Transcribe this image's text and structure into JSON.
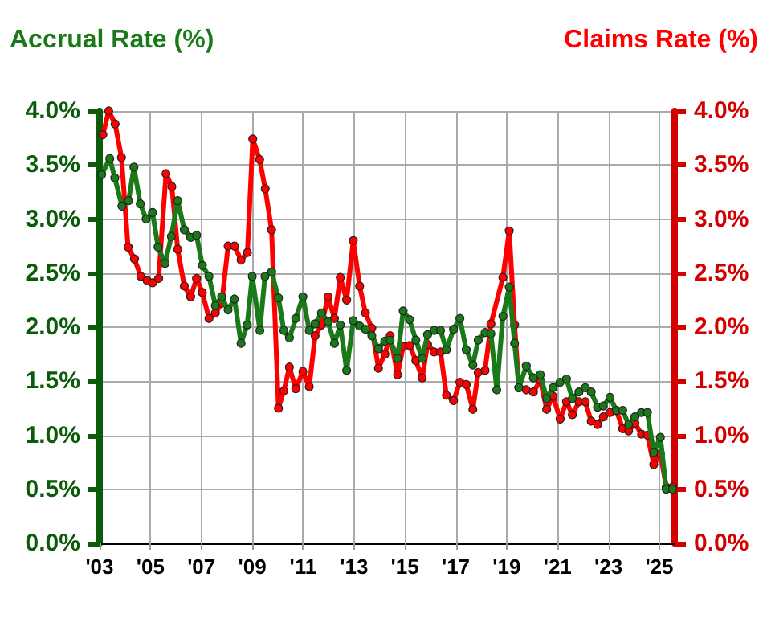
{
  "chart_data": {
    "type": "line",
    "ylabel": "Accrual Rate (%)",
    "y2label": "Claims Rate (%)",
    "xlim": [
      2003,
      2025.6
    ],
    "xticks": [
      {
        "value": 2003,
        "label": "'03"
      },
      {
        "value": 2005,
        "label": "'05"
      },
      {
        "value": 2007,
        "label": "'07"
      },
      {
        "value": 2009,
        "label": "'09"
      },
      {
        "value": 2011,
        "label": "'11"
      },
      {
        "value": 2013,
        "label": "'13"
      },
      {
        "value": 2015,
        "label": "'15"
      },
      {
        "value": 2017,
        "label": "'17"
      },
      {
        "value": 2019,
        "label": "'19"
      },
      {
        "value": 2021,
        "label": "'21"
      },
      {
        "value": 2023,
        "label": "'23"
      },
      {
        "value": 2025,
        "label": "'25"
      }
    ],
    "ylim": [
      0,
      4
    ],
    "yticks": [
      {
        "value": 0,
        "label": "0.0%"
      },
      {
        "value": 0.5,
        "label": "0.5%"
      },
      {
        "value": 1,
        "label": "1.0%"
      },
      {
        "value": 1.5,
        "label": "1.5%"
      },
      {
        "value": 2,
        "label": "2.0%"
      },
      {
        "value": 2.5,
        "label": "2.5%"
      },
      {
        "value": 3,
        "label": "3.0%"
      },
      {
        "value": 3.5,
        "label": "3.5%"
      },
      {
        "value": 4,
        "label": "4.0%"
      }
    ],
    "y2lim": [
      0,
      4
    ],
    "y2ticks": [
      {
        "value": 0,
        "label": "0.0%"
      },
      {
        "value": 0.5,
        "label": "0.5%"
      },
      {
        "value": 1,
        "label": "1.0%"
      },
      {
        "value": 1.5,
        "label": "1.5%"
      },
      {
        "value": 2,
        "label": "2.0%"
      },
      {
        "value": 2.5,
        "label": "2.5%"
      },
      {
        "value": 3,
        "label": "3.0%"
      },
      {
        "value": 3.5,
        "label": "3.5%"
      },
      {
        "value": 4,
        "label": "4.0%"
      }
    ],
    "grid": true,
    "marker": "circle",
    "line_style": "solid",
    "series": [
      {
        "color": "#1a7a1a",
        "axis": "y",
        "x": [
          2003.08,
          2003.4,
          2003.6,
          2003.88,
          2004.14,
          2004.35,
          2004.6,
          2004.83,
          2005.08,
          2005.3,
          2005.57,
          2005.82,
          2006.07,
          2006.33,
          2006.58,
          2006.81,
          2007.04,
          2007.3,
          2007.55,
          2007.8,
          2008.05,
          2008.3,
          2008.56,
          2008.8,
          2009.0,
          2009.3,
          2009.5,
          2009.76,
          2010.03,
          2010.24,
          2010.46,
          2010.71,
          2010.99,
          2011.24,
          2011.47,
          2011.72,
          2011.98,
          2012.23,
          2012.46,
          2012.71,
          2012.97,
          2013.22,
          2013.45,
          2013.7,
          2013.96,
          2014.21,
          2014.42,
          2014.71,
          2014.93,
          2015.18,
          2015.43,
          2015.68,
          2015.89,
          2016.15,
          2016.4,
          2016.63,
          2016.91,
          2017.16,
          2017.41,
          2017.67,
          2017.88,
          2018.15,
          2018.38,
          2018.61,
          2018.85,
          2019.1,
          2019.31,
          2019.48,
          2019.77,
          2020.05,
          2020.32,
          2020.57,
          2020.82,
          2021.1,
          2021.35,
          2021.58,
          2021.84,
          2022.09,
          2022.32,
          2022.57,
          2022.8,
          2023.06,
          2023.31,
          2023.56,
          2023.79,
          2024.04,
          2024.3,
          2024.53,
          2024.78,
          2025.04,
          2025.27,
          2025.52
        ],
        "values": [
          3.41,
          3.56,
          3.38,
          3.12,
          3.17,
          3.48,
          3.14,
          3.0,
          3.06,
          2.74,
          2.59,
          2.84,
          3.17,
          2.9,
          2.83,
          2.85,
          2.57,
          2.47,
          2.2,
          2.28,
          2.16,
          2.26,
          1.85,
          2.02,
          2.47,
          1.97,
          2.47,
          2.51,
          2.27,
          1.97,
          1.9,
          2.08,
          2.28,
          1.97,
          2.03,
          2.13,
          2.05,
          1.85,
          2.02,
          1.6,
          2.06,
          2.01,
          1.98,
          1.92,
          1.8,
          1.87,
          1.88,
          1.71,
          2.15,
          2.07,
          1.88,
          1.71,
          1.93,
          1.97,
          1.97,
          1.79,
          1.98,
          2.08,
          1.79,
          1.65,
          1.88,
          1.95,
          1.94,
          1.42,
          2.1,
          2.37,
          1.85,
          1.44,
          1.64,
          1.53,
          1.56,
          1.34,
          1.44,
          1.49,
          1.52,
          1.34,
          1.4,
          1.44,
          1.4,
          1.26,
          1.27,
          1.35,
          1.23,
          1.23,
          1.1,
          1.17,
          1.21,
          1.21,
          0.84,
          0.98,
          0.5,
          0.5
        ]
      },
      {
        "color": "#ff0000",
        "axis": "y2",
        "x": [
          2003.13,
          2003.36,
          2003.61,
          2003.86,
          2004.12,
          2004.37,
          2004.62,
          2004.87,
          2005.08,
          2005.32,
          2005.61,
          2005.84,
          2006.07,
          2006.33,
          2006.58,
          2006.81,
          2007.04,
          2007.3,
          2007.55,
          2007.8,
          2008.05,
          2008.3,
          2008.56,
          2008.81,
          2009.02,
          2009.29,
          2009.51,
          2009.76,
          2010.03,
          2010.24,
          2010.46,
          2010.71,
          2010.99,
          2011.24,
          2011.47,
          2011.72,
          2011.98,
          2012.23,
          2012.46,
          2012.71,
          2012.97,
          2013.22,
          2013.45,
          2013.7,
          2013.96,
          2014.21,
          2014.42,
          2014.71,
          2014.93,
          2015.18,
          2015.43,
          2015.68,
          2015.89,
          2016.15,
          2016.4,
          2016.63,
          2016.91,
          2017.16,
          2017.41,
          2017.67,
          2017.88,
          2018.15,
          2018.38,
          2018.85,
          2019.1,
          2019.31,
          2019.48,
          2019.77,
          2020.05,
          2020.32,
          2020.57,
          2020.82,
          2021.1,
          2021.35,
          2021.58,
          2021.84,
          2022.09,
          2022.32,
          2022.57,
          2022.8,
          2023.06,
          2023.31,
          2023.56,
          2023.79,
          2024.04,
          2024.3,
          2024.53,
          2024.78,
          2025.04,
          2025.27,
          2025.52
        ],
        "values": [
          3.78,
          4.0,
          3.88,
          3.57,
          2.74,
          2.63,
          2.47,
          2.43,
          2.41,
          2.45,
          3.42,
          3.3,
          2.72,
          2.38,
          2.28,
          2.45,
          2.32,
          2.08,
          2.13,
          2.22,
          2.75,
          2.75,
          2.62,
          2.69,
          3.74,
          3.55,
          3.28,
          2.9,
          1.25,
          1.41,
          1.63,
          1.43,
          1.59,
          1.45,
          1.92,
          2.02,
          2.28,
          2.08,
          2.46,
          2.25,
          2.8,
          2.38,
          2.13,
          1.99,
          1.62,
          1.75,
          1.92,
          1.56,
          1.82,
          1.83,
          1.69,
          1.53,
          1.84,
          1.77,
          1.77,
          1.37,
          1.32,
          1.49,
          1.47,
          1.24,
          1.58,
          1.6,
          2.03,
          2.46,
          2.89,
          2.02,
          1.44,
          1.42,
          1.4,
          1.51,
          1.24,
          1.36,
          1.15,
          1.31,
          1.19,
          1.31,
          1.31,
          1.13,
          1.1,
          1.17,
          1.21,
          1.23,
          1.06,
          1.04,
          1.11,
          1.01,
          1.0,
          0.73,
          0.83,
          0.52,
          0.52
        ]
      }
    ]
  }
}
